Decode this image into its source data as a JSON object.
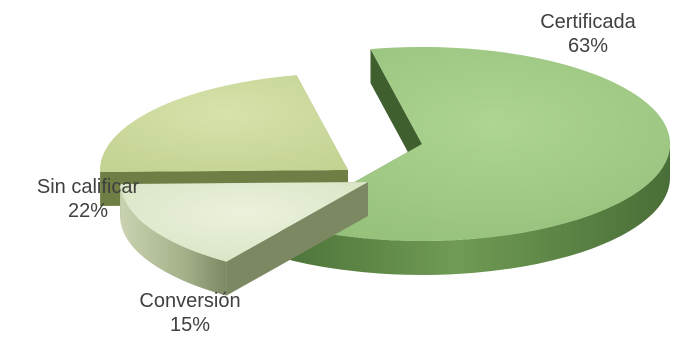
{
  "chart_data": {
    "type": "pie",
    "style": "3d-exploded",
    "title": "",
    "categories": [
      "Certificada",
      "Conversión",
      "Sin calificar"
    ],
    "values": [
      63,
      15,
      22
    ],
    "value_labels": [
      "63%",
      "15%",
      "22%"
    ],
    "legend": "none"
  },
  "colors": {
    "Certificada": {
      "top": "#a3cc88",
      "side": "#5e8a46",
      "dark": "#3f5f2e"
    },
    "Conversión": {
      "top": "#e3ecd0",
      "side": "#9aa77c",
      "dark": "#7c8862"
    },
    "Sin calificar": {
      "top": "#cfdca2",
      "side": "#9aab66",
      "dark": "#6f7e45"
    },
    "label_text": "#404040"
  }
}
